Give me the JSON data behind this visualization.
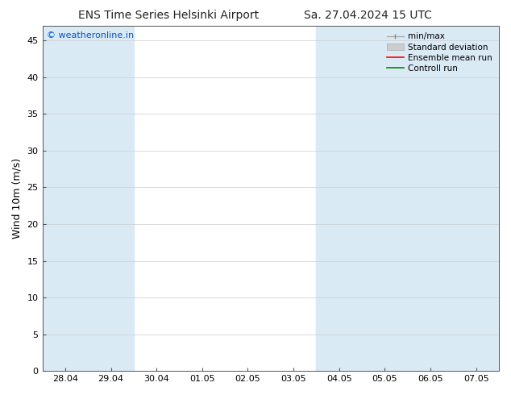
{
  "title_left": "ENS Time Series Helsinki Airport",
  "title_right": "Sa. 27.04.2024 15 UTC",
  "ylabel": "Wind 10m (m/s)",
  "watermark": "© weatheronline.in",
  "watermark_color": "#0055cc",
  "ylim": [
    0,
    47
  ],
  "yticks": [
    0,
    5,
    10,
    15,
    20,
    25,
    30,
    35,
    40,
    45
  ],
  "xtick_labels": [
    "28.04",
    "29.04",
    "30.04",
    "01.05",
    "02.05",
    "03.05",
    "04.05",
    "05.05",
    "06.05",
    "07.05"
  ],
  "background_color": "#ffffff",
  "plot_bg_color": "#ffffff",
  "shade_color": "#daeaf5",
  "shade_alpha": 1.0,
  "shaded_indices": [
    0,
    1,
    6,
    7,
    8,
    9
  ],
  "legend_items": [
    {
      "label": "min/max",
      "color": "#aaaaaa",
      "style": "errorbar"
    },
    {
      "label": "Standard deviation",
      "color": "#cccccc",
      "style": "fill"
    },
    {
      "label": "Ensemble mean run",
      "color": "#ff0000",
      "style": "line"
    },
    {
      "label": "Controll run",
      "color": "#008800",
      "style": "line"
    }
  ],
  "title_fontsize": 10,
  "label_fontsize": 9,
  "tick_fontsize": 8,
  "legend_fontsize": 7.5,
  "watermark_fontsize": 8
}
